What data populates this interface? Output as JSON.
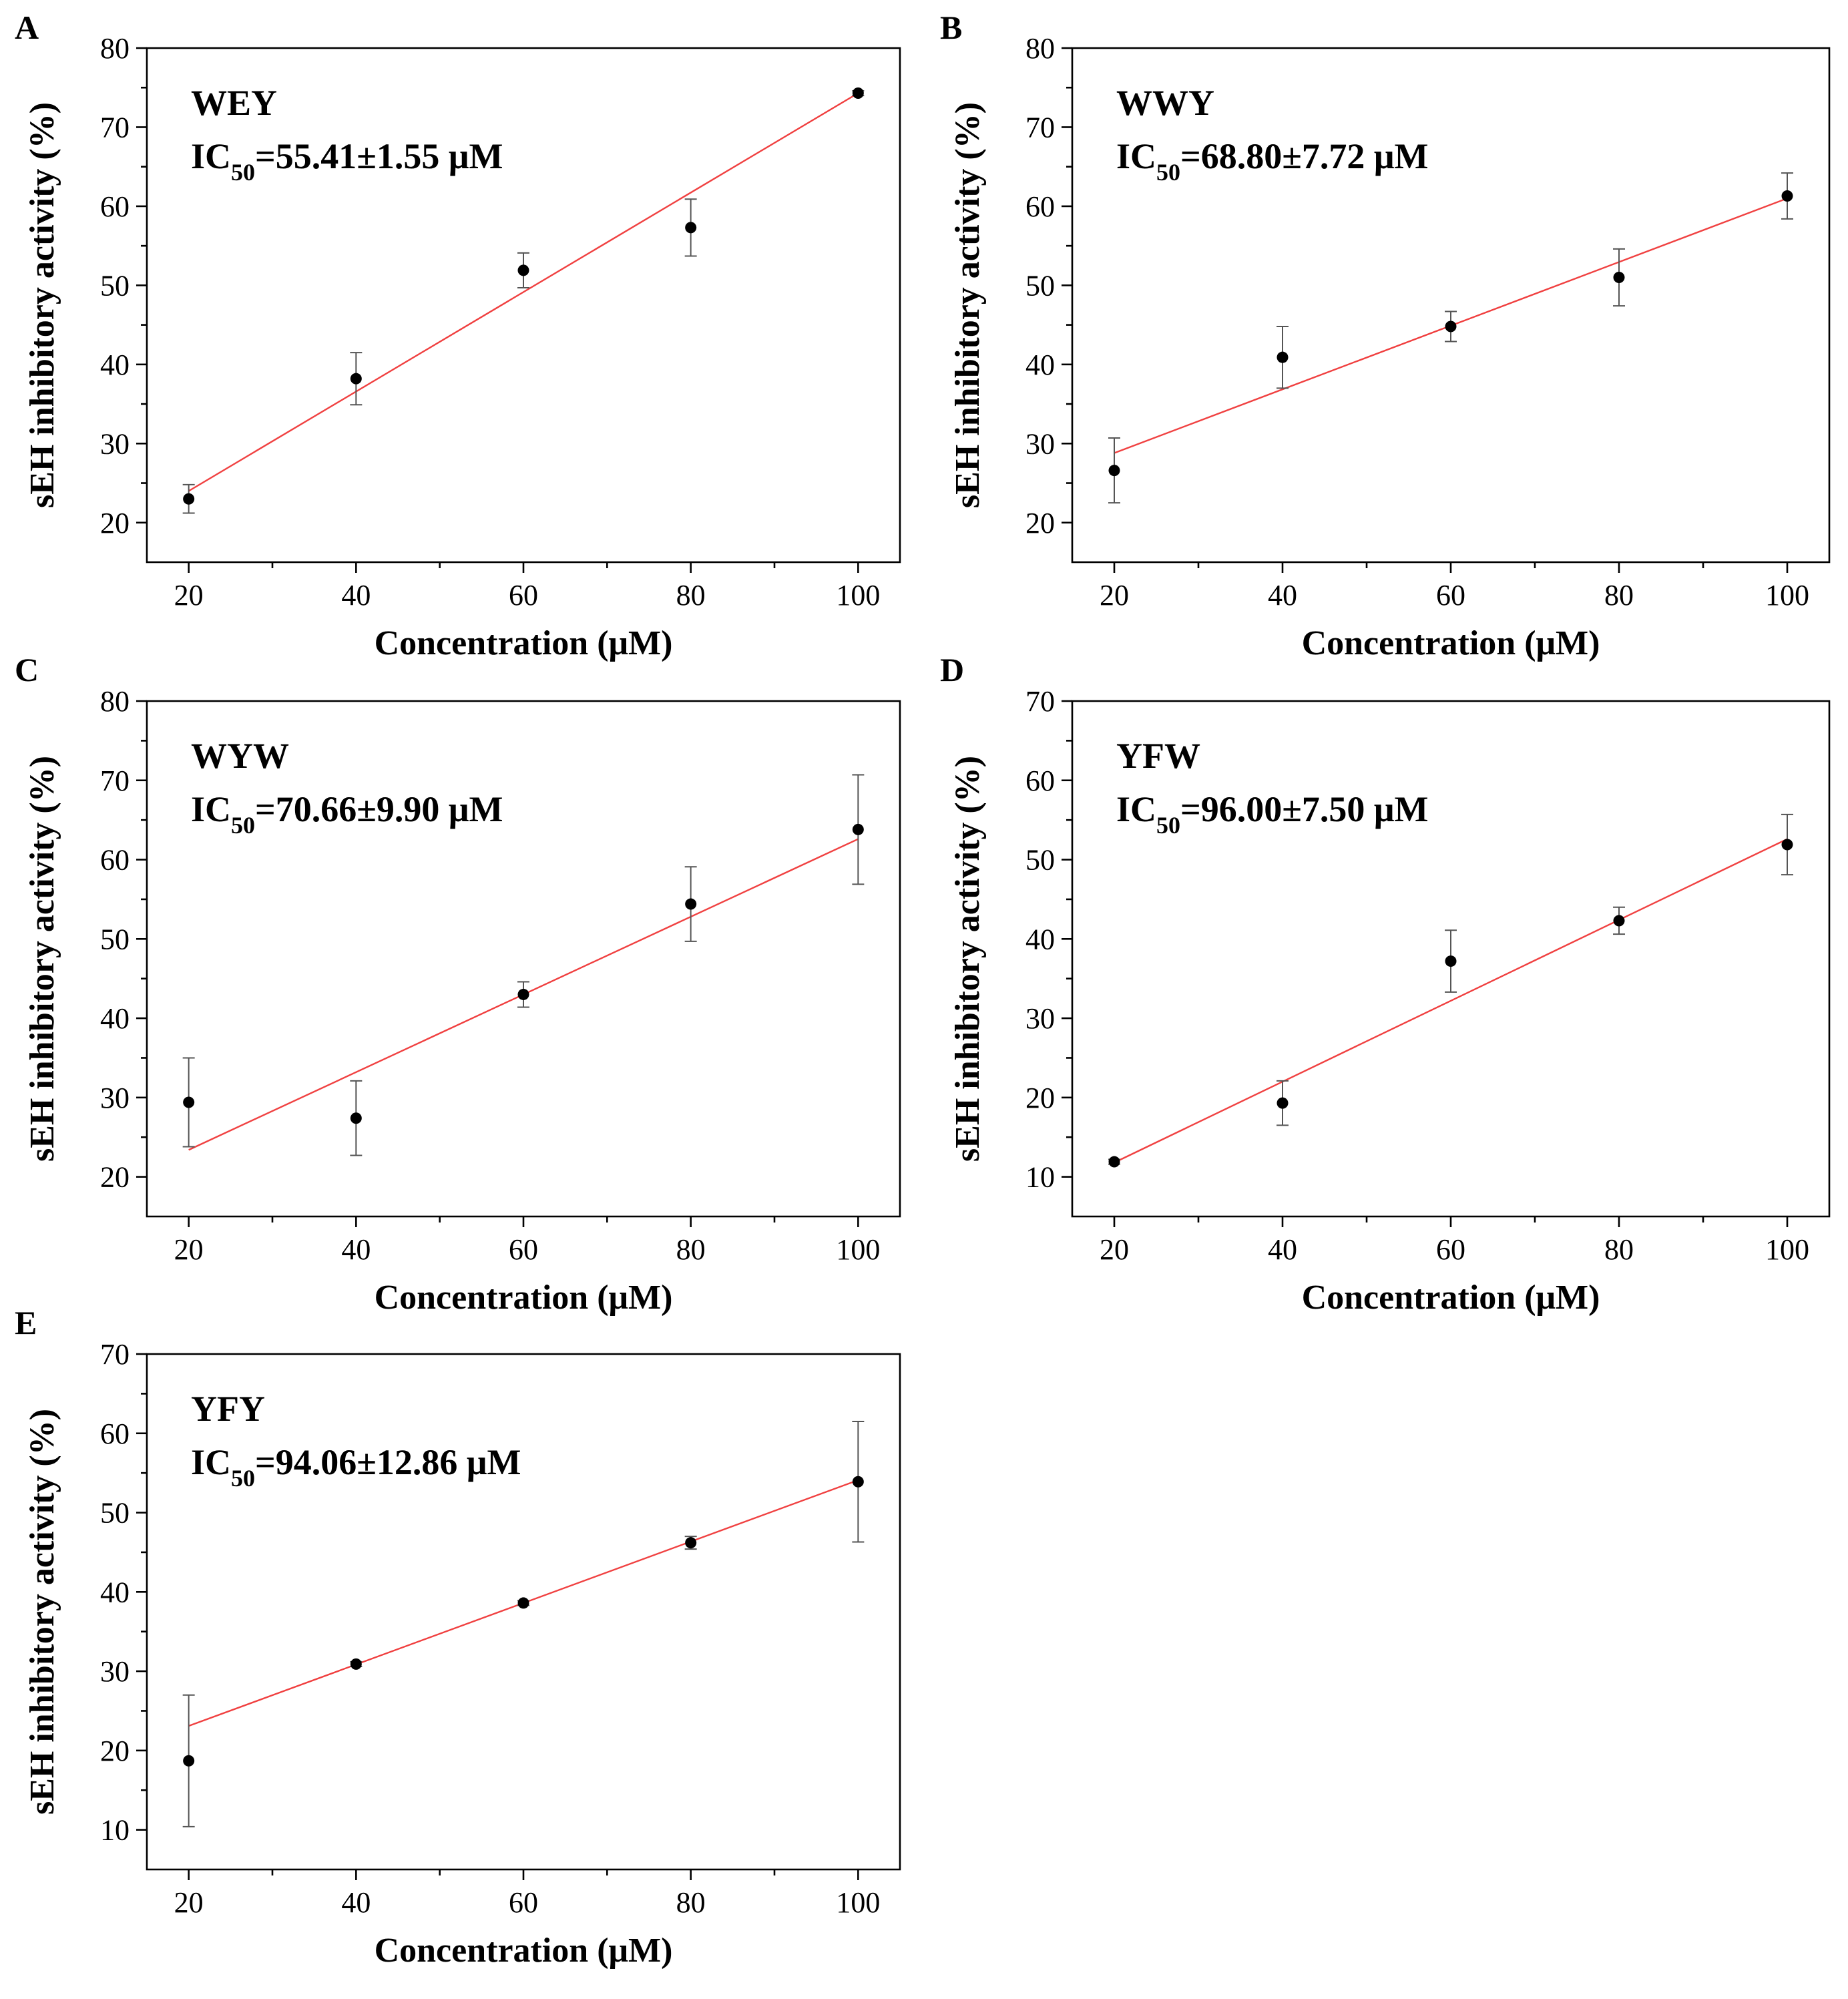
{
  "chart_data": [
    {
      "panel": "A",
      "type": "scatter",
      "peptide": "WEY",
      "ic50": "=55.41±1.55 μM",
      "xlabel": "Concentration (μM)",
      "ylabel": "sEH inhibitory activity (%)",
      "x": [
        20,
        40,
        60,
        80,
        100
      ],
      "y": [
        23.0,
        38.2,
        51.9,
        57.3,
        74.3
      ],
      "err": [
        1.8,
        3.3,
        2.2,
        3.6,
        0.3
      ],
      "fit": [
        [
          20,
          24.0
        ],
        [
          100,
          74.3
        ]
      ],
      "xlim": [
        15,
        105
      ],
      "ylim": [
        15,
        80
      ],
      "xticks": [
        20,
        40,
        60,
        80,
        100
      ],
      "yticks": [
        20,
        30,
        40,
        50,
        60,
        70,
        80
      ]
    },
    {
      "panel": "B",
      "type": "scatter",
      "peptide": "WWY",
      "ic50": "=68.80±7.72 μM",
      "xlabel": "Concentration (μM)",
      "ylabel": "sEH inhibitory activity (%)",
      "x": [
        20,
        40,
        60,
        80,
        100
      ],
      "y": [
        26.6,
        40.9,
        44.8,
        51.0,
        61.3
      ],
      "err": [
        4.1,
        3.9,
        1.9,
        3.6,
        2.9
      ],
      "fit": [
        [
          20,
          28.8
        ],
        [
          100,
          61.0
        ]
      ],
      "xlim": [
        15,
        105
      ],
      "ylim": [
        15,
        80
      ],
      "xticks": [
        20,
        40,
        60,
        80,
        100
      ],
      "yticks": [
        20,
        30,
        40,
        50,
        60,
        70,
        80
      ]
    },
    {
      "panel": "C",
      "type": "scatter",
      "peptide": "WYW",
      "ic50": "=70.66±9.90 μM",
      "xlabel": "Concentration (μM)",
      "ylabel": "sEH inhibitory activity (%)",
      "x": [
        20,
        40,
        60,
        80,
        100
      ],
      "y": [
        29.4,
        27.4,
        43.0,
        54.4,
        63.8
      ],
      "err": [
        5.6,
        4.7,
        1.6,
        4.7,
        6.9
      ],
      "fit": [
        [
          20,
          23.4
        ],
        [
          100,
          62.6
        ]
      ],
      "xlim": [
        15,
        105
      ],
      "ylim": [
        15,
        80
      ],
      "xticks": [
        20,
        40,
        60,
        80,
        100
      ],
      "yticks": [
        20,
        30,
        40,
        50,
        60,
        70,
        80
      ]
    },
    {
      "panel": "D",
      "type": "scatter",
      "peptide": "YFW",
      "ic50": "=96.00±7.50 μM",
      "xlabel": "Concentration (μM)",
      "ylabel": "sEH inhibitory activity (%)",
      "x": [
        20,
        40,
        60,
        80,
        100
      ],
      "y": [
        11.9,
        19.3,
        37.2,
        42.3,
        51.9
      ],
      "err": [
        0.3,
        2.8,
        3.9,
        1.7,
        3.8
      ],
      "fit": [
        [
          20,
          11.8
        ],
        [
          100,
          52.6
        ]
      ],
      "xlim": [
        15,
        105
      ],
      "ylim": [
        5,
        70
      ],
      "xticks": [
        20,
        40,
        60,
        80,
        100
      ],
      "yticks": [
        10,
        20,
        30,
        40,
        50,
        60,
        70
      ]
    },
    {
      "panel": "E",
      "type": "scatter",
      "peptide": "YFY",
      "ic50": "=94.06±12.86 μM",
      "xlabel": "Concentration (μM)",
      "ylabel": "sEH inhibitory activity (%)",
      "x": [
        20,
        40,
        60,
        80,
        100
      ],
      "y": [
        18.7,
        30.9,
        38.6,
        46.2,
        53.9
      ],
      "err": [
        8.3,
        0.3,
        0.3,
        0.8,
        7.6
      ],
      "fit": [
        [
          20,
          23.1
        ],
        [
          100,
          54.1
        ]
      ],
      "xlim": [
        15,
        105
      ],
      "ylim": [
        5,
        70
      ],
      "xticks": [
        20,
        40,
        60,
        80,
        100
      ],
      "yticks": [
        10,
        20,
        30,
        40,
        50,
        60,
        70
      ]
    }
  ],
  "ic50_prefix": "IC",
  "ic50_subscript": "50",
  "colors": {
    "fit_line": "#f04040",
    "error_bar": "#555555",
    "marker": "#000000",
    "frame": "#000000"
  }
}
